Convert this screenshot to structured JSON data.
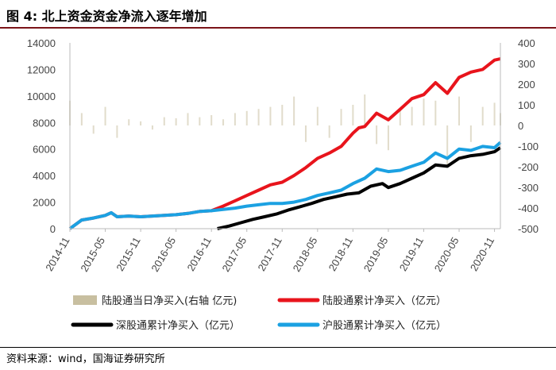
{
  "figure": {
    "title": "图 4:  北上资金资金净流入逐年增加",
    "source": "资料来源：wind，国海证券研究所"
  },
  "colors": {
    "daily": "#c8bfa0",
    "lugutong": "#e8141c",
    "shengu": "#000000",
    "hugu": "#1ba1e2",
    "title_rule": "#7b1418"
  },
  "chart_data": {
    "type": "line",
    "x_unit": "month",
    "x_ticks": [
      "2014-11",
      "2015-05",
      "2015-11",
      "2016-05",
      "2016-11",
      "2017-05",
      "2017-11",
      "2018-05",
      "2018-11",
      "2019-05",
      "2019-11",
      "2020-05",
      "2020-11"
    ],
    "y_left": {
      "ticks": [
        0,
        2000,
        4000,
        6000,
        8000,
        10000,
        12000,
        14000
      ],
      "ylim": [
        0,
        14000
      ]
    },
    "y_right": {
      "ticks": [
        -500,
        -400,
        -300,
        -200,
        -100,
        0,
        100,
        200,
        300,
        400
      ],
      "ylim": [
        -500,
        400
      ]
    },
    "grid": false,
    "legend_position": "bottom",
    "series": [
      {
        "name": "陆股通当日净买入(右轴 亿元)",
        "type": "bar",
        "axis": "right",
        "color": "#c8bfa0",
        "x": [
          "2014-11",
          "2015-01",
          "2015-03",
          "2015-05",
          "2015-07",
          "2015-09",
          "2015-11",
          "2016-01",
          "2016-03",
          "2016-05",
          "2016-07",
          "2016-09",
          "2016-11",
          "2017-01",
          "2017-03",
          "2017-05",
          "2017-07",
          "2017-09",
          "2017-11",
          "2018-01",
          "2018-03",
          "2018-05",
          "2018-07",
          "2018-09",
          "2018-11",
          "2019-01",
          "2019-03",
          "2019-05",
          "2019-07",
          "2019-09",
          "2019-11",
          "2020-01",
          "2020-03",
          "2020-05",
          "2020-07",
          "2020-09",
          "2020-11",
          "2020-12"
        ],
        "values": [
          120,
          60,
          -40,
          90,
          -60,
          30,
          20,
          -20,
          40,
          35,
          60,
          40,
          50,
          30,
          60,
          70,
          80,
          90,
          100,
          140,
          -80,
          90,
          -60,
          80,
          100,
          150,
          -90,
          -120,
          80,
          90,
          130,
          120,
          -190,
          140,
          -80,
          90,
          110,
          60
        ]
      },
      {
        "name": "陆股通累计净买入（亿元）",
        "type": "line",
        "axis": "left",
        "color": "#e8141c",
        "x": [
          "2014-11",
          "2015-01",
          "2015-03",
          "2015-05",
          "2015-06",
          "2015-07",
          "2015-09",
          "2015-11",
          "2016-01",
          "2016-03",
          "2016-05",
          "2016-07",
          "2016-09",
          "2016-11",
          "2017-01",
          "2017-03",
          "2017-05",
          "2017-07",
          "2017-09",
          "2017-11",
          "2018-01",
          "2018-03",
          "2018-05",
          "2018-07",
          "2018-09",
          "2018-11",
          "2018-12",
          "2019-01",
          "2019-03",
          "2019-05",
          "2019-07",
          "2019-09",
          "2019-11",
          "2020-01",
          "2020-03",
          "2020-05",
          "2020-07",
          "2020-09",
          "2020-11",
          "2020-12"
        ],
        "values": [
          0,
          650,
          800,
          1000,
          1200,
          900,
          950,
          900,
          950,
          1000,
          1050,
          1150,
          1300,
          1350,
          1700,
          2100,
          2500,
          2900,
          3300,
          3500,
          4000,
          4600,
          5300,
          5700,
          6200,
          7200,
          7600,
          7700,
          8700,
          8200,
          9000,
          9800,
          10100,
          11000,
          10200,
          11400,
          11800,
          12000,
          12700,
          12800
        ]
      },
      {
        "name": "深股通累计净买入（亿元）",
        "type": "line",
        "axis": "left",
        "color": "#000000",
        "x": [
          "2016-12",
          "2017-02",
          "2017-04",
          "2017-06",
          "2017-08",
          "2017-10",
          "2017-12",
          "2018-02",
          "2018-04",
          "2018-06",
          "2018-08",
          "2018-10",
          "2018-12",
          "2019-02",
          "2019-04",
          "2019-05",
          "2019-07",
          "2019-09",
          "2019-11",
          "2020-01",
          "2020-03",
          "2020-05",
          "2020-07",
          "2020-09",
          "2020-11",
          "2020-12"
        ],
        "values": [
          0,
          200,
          450,
          700,
          900,
          1100,
          1400,
          1650,
          1900,
          2200,
          2400,
          2600,
          2700,
          3200,
          3400,
          3100,
          3400,
          3800,
          4200,
          4800,
          4700,
          5300,
          5500,
          5600,
          5800,
          6100
        ]
      },
      {
        "name": "沪股通累计净买入（亿元）",
        "type": "line",
        "axis": "left",
        "color": "#1ba1e2",
        "x": [
          "2014-11",
          "2015-01",
          "2015-03",
          "2015-05",
          "2015-06",
          "2015-07",
          "2015-09",
          "2015-11",
          "2016-01",
          "2016-03",
          "2016-05",
          "2016-07",
          "2016-09",
          "2016-11",
          "2017-01",
          "2017-03",
          "2017-05",
          "2017-07",
          "2017-09",
          "2017-11",
          "2018-01",
          "2018-03",
          "2018-05",
          "2018-07",
          "2018-09",
          "2018-11",
          "2019-01",
          "2019-03",
          "2019-05",
          "2019-07",
          "2019-09",
          "2019-11",
          "2020-01",
          "2020-03",
          "2020-05",
          "2020-07",
          "2020-09",
          "2020-11",
          "2020-12"
        ],
        "values": [
          0,
          650,
          800,
          1000,
          1200,
          900,
          950,
          900,
          950,
          1000,
          1050,
          1150,
          1300,
          1350,
          1450,
          1550,
          1700,
          1800,
          1900,
          1900,
          2000,
          2200,
          2500,
          2700,
          2900,
          3400,
          3800,
          4500,
          4300,
          4400,
          4700,
          5000,
          5700,
          5300,
          6000,
          5900,
          6200,
          6100,
          6500
        ]
      }
    ]
  }
}
